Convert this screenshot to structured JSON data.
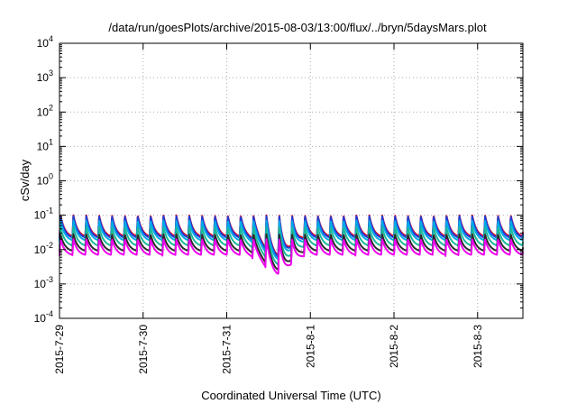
{
  "chart_data": {
    "type": "line",
    "title": "/data/run/goesPlots/archive/2015-08-03/13:00/flux/../bryn/5daysMars.plot",
    "xlabel": "Coordinated Universal Time (UTC)",
    "ylabel": "cSv/day",
    "y_scale": "log",
    "ylim": [
      0.0001,
      10000
    ],
    "y_ticks": [
      {
        "base": "10",
        "exp": "-4",
        "value": 0.0001
      },
      {
        "base": "10",
        "exp": "-3",
        "value": 0.001
      },
      {
        "base": "10",
        "exp": "-2",
        "value": 0.01
      },
      {
        "base": "10",
        "exp": "-1",
        "value": 0.1
      },
      {
        "base": "10",
        "exp": "0",
        "value": 1
      },
      {
        "base": "10",
        "exp": "1",
        "value": 10
      },
      {
        "base": "10",
        "exp": "2",
        "value": 100
      },
      {
        "base": "10",
        "exp": "3",
        "value": 1000
      },
      {
        "base": "10",
        "exp": "4",
        "value": 10000
      }
    ],
    "x_ticks": [
      "2015-7-29",
      "2015-7-30",
      "2015-7-31",
      "2015-8-1",
      "2015-8-2",
      "2015-8-3"
    ],
    "xlim": [
      "2015-07-29 00:00",
      "2015-08-03 13:00"
    ],
    "grid": true,
    "cycles_per_day": 6.5,
    "series": [
      {
        "color": "#e8001c",
        "peak": 0.1,
        "trough": 0.022
      },
      {
        "color": "#1f3fd6",
        "peak": 0.095,
        "trough": 0.02
      },
      {
        "color": "#00a8e8",
        "peak": 0.07,
        "trough": 0.017
      },
      {
        "color": "#1cb89a",
        "peak": 0.045,
        "trough": 0.012
      },
      {
        "color": "#2b2b2b",
        "peak": 0.028,
        "trough": 0.0085
      },
      {
        "color": "#ee00ee",
        "peak": 0.02,
        "trough": 0.0065
      }
    ],
    "dip": {
      "center": "2015-07-31 14:30",
      "trough_factor": 0.25
    }
  }
}
